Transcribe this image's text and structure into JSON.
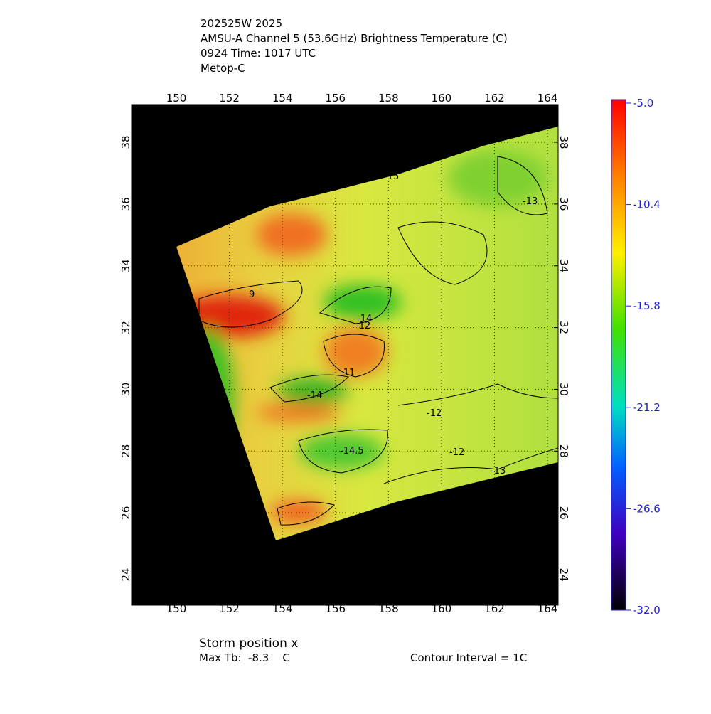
{
  "header": {
    "lines": [
      "202525W 2025",
      "AMSU-A Channel 5 (53.6GHz) Brightness Temperature (C)",
      "0924 Time: 1017 UTC",
      "Metop-C"
    ]
  },
  "map": {
    "xlim": [
      148.31,
      164.4
    ],
    "ylim": [
      23.01,
      39.22
    ],
    "xticks": [
      150,
      152,
      154,
      156,
      158,
      160,
      162,
      164
    ],
    "yticks": [
      24,
      26,
      28,
      30,
      32,
      34,
      36,
      38
    ],
    "contour_labels": [
      "9",
      "-12",
      "-11",
      "-14",
      "-14.5",
      "-12",
      "-12",
      "-13",
      "-13",
      "-15",
      "-14"
    ]
  },
  "colorbar": {
    "lim": [
      -32,
      -5
    ],
    "ticks": [
      {
        "value": -5,
        "label": "-5.0"
      },
      -10.4,
      -15.8,
      -21.2,
      -26.6,
      {
        "value": -32,
        "label": "-32.0"
      }
    ]
  },
  "footer": {
    "storm": "Storm position x",
    "max_tb": "Max Tb:  -8.3    C",
    "interval": "Contour Interval = 1C"
  }
}
